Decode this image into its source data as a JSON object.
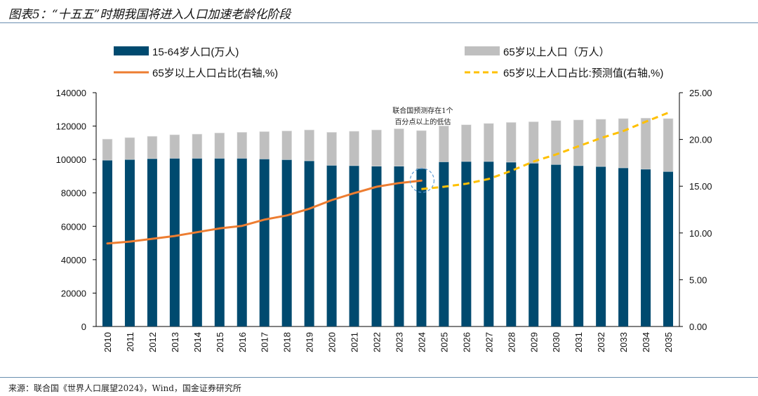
{
  "title": "图表5：“十五五”时期我国将进入人口加速老龄化阶段",
  "source": "来源：联合国《世界人口展望2024》，Wind，国金证券研究所",
  "chart_data": {
    "type": "bar",
    "categories": [
      "2010",
      "2011",
      "2012",
      "2013",
      "2014",
      "2015",
      "2016",
      "2017",
      "2018",
      "2019",
      "2020",
      "2021",
      "2022",
      "2023",
      "2024",
      "2025",
      "2026",
      "2027",
      "2028",
      "2029",
      "2030",
      "2031",
      "2032",
      "2033",
      "2034",
      "2035"
    ],
    "stacked": true,
    "series": [
      {
        "name": "15-64岁人口(万人)",
        "type": "bar",
        "axis": "left",
        "color": "#004a6f",
        "values": [
          99600,
          100000,
          100500,
          100700,
          100700,
          100700,
          100700,
          100300,
          99900,
          99200,
          96500,
          96300,
          96000,
          96000,
          94600,
          98600,
          98800,
          98800,
          98400,
          97800,
          97000,
          96300,
          95800,
          95000,
          94200,
          92800
        ]
      },
      {
        "name": "65岁以上人口（万人）",
        "type": "bar",
        "axis": "left",
        "color": "#bfbfbf",
        "values": [
          12600,
          13100,
          13400,
          14100,
          14500,
          15200,
          15600,
          16400,
          17200,
          18500,
          19800,
          20600,
          21700,
          22400,
          22700,
          21500,
          22000,
          22800,
          23800,
          24800,
          26300,
          27400,
          28300,
          29500,
          30600,
          31700
        ]
      },
      {
        "name": "65岁以上人口占比(右轴,%)",
        "type": "line",
        "axis": "right",
        "color": "#ed7d31",
        "x": [
          "2010",
          "2011",
          "2012",
          "2013",
          "2014",
          "2015",
          "2016",
          "2017",
          "2018",
          "2019",
          "2020",
          "2021",
          "2022",
          "2023",
          "2024"
        ],
        "values": [
          8.88,
          9.08,
          9.38,
          9.68,
          10.08,
          10.49,
          10.76,
          11.43,
          11.88,
          12.59,
          13.51,
          14.26,
          14.94,
          15.34,
          15.59
        ]
      },
      {
        "name": "65岁以上人口占比:预测值(右轴,%)",
        "type": "line",
        "style": "dashed",
        "axis": "right",
        "color": "#ffc000",
        "x": [
          "2024",
          "2025",
          "2026",
          "2027",
          "2028",
          "2029",
          "2030",
          "2031",
          "2032",
          "2033",
          "2034",
          "2035"
        ],
        "values": [
          14.69,
          14.94,
          15.26,
          15.77,
          16.64,
          17.64,
          18.39,
          19.27,
          20.14,
          20.9,
          21.9,
          22.85
        ]
      }
    ],
    "y_left": {
      "range": [
        0,
        140000
      ],
      "ticks": [
        "0",
        "20000",
        "40000",
        "60000",
        "80000",
        "100000",
        "120000",
        "140000"
      ]
    },
    "y_right": {
      "range": [
        0,
        25
      ],
      "ticks": [
        "0.00",
        "5.00",
        "10.00",
        "15.00",
        "20.00",
        "25.00"
      ]
    },
    "annotation": {
      "lines": [
        "联合国预测存在1个",
        "百分点以上的低估"
      ],
      "target": "2024",
      "circle_color": "#5b9bd5"
    },
    "legend": "top",
    "grid": false
  }
}
